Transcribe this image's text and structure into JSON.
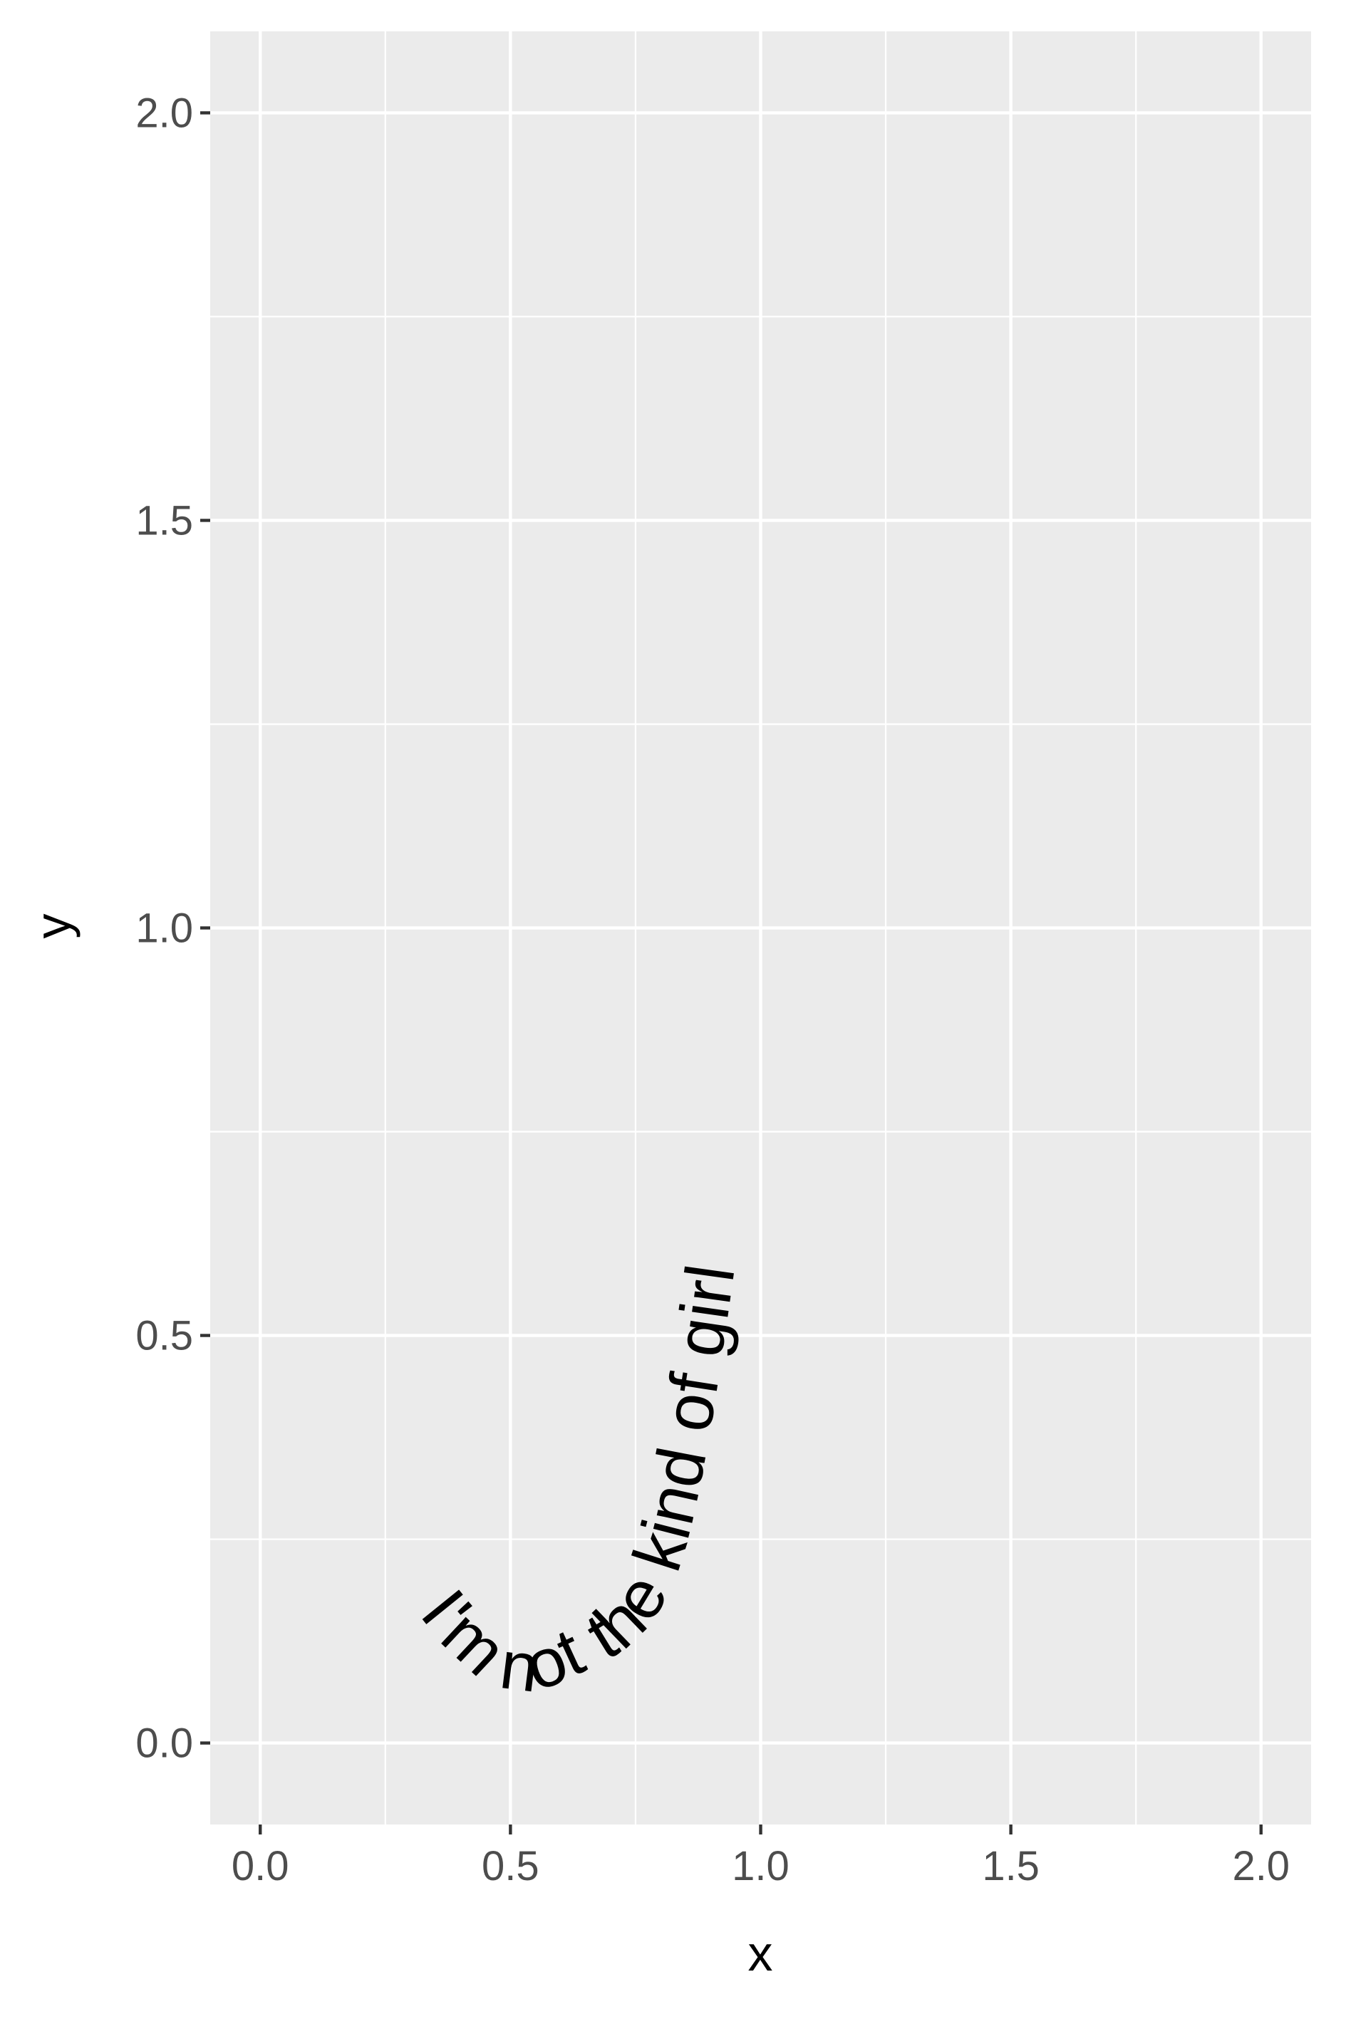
{
  "chart_data": {
    "type": "scatter",
    "title": "",
    "xlabel": "x",
    "ylabel": "y",
    "xlim": [
      -0.1,
      2.1
    ],
    "ylim": [
      -0.1,
      2.1
    ],
    "x_ticks": [
      0.0,
      0.5,
      1.0,
      1.5,
      2.0
    ],
    "y_ticks": [
      0.0,
      0.5,
      1.0,
      1.5,
      2.0
    ],
    "x_tick_labels": [
      "0.0",
      "0.5",
      "1.0",
      "1.5",
      "2.0"
    ],
    "y_tick_labels": [
      "0.0",
      "0.5",
      "1.0",
      "1.5",
      "2.0"
    ],
    "grid": true,
    "annotations": [
      {
        "text": "I'm not the kind of girl",
        "style": "text along a U-shaped curve",
        "path": [
          [
            0.18,
            0.27
          ],
          [
            0.42,
            0.09
          ],
          [
            0.62,
            0.08
          ],
          [
            0.84,
            0.22
          ],
          [
            0.98,
            0.72
          ]
        ]
      }
    ]
  },
  "colors": {
    "panel_background": "#ebebeb",
    "grid_major": "#ffffff",
    "grid_minor": "#ffffff",
    "tick_text": "#4d4d4d",
    "tick_mark": "#333333",
    "axis_title": "#000000",
    "annotation_text": "#000000"
  }
}
